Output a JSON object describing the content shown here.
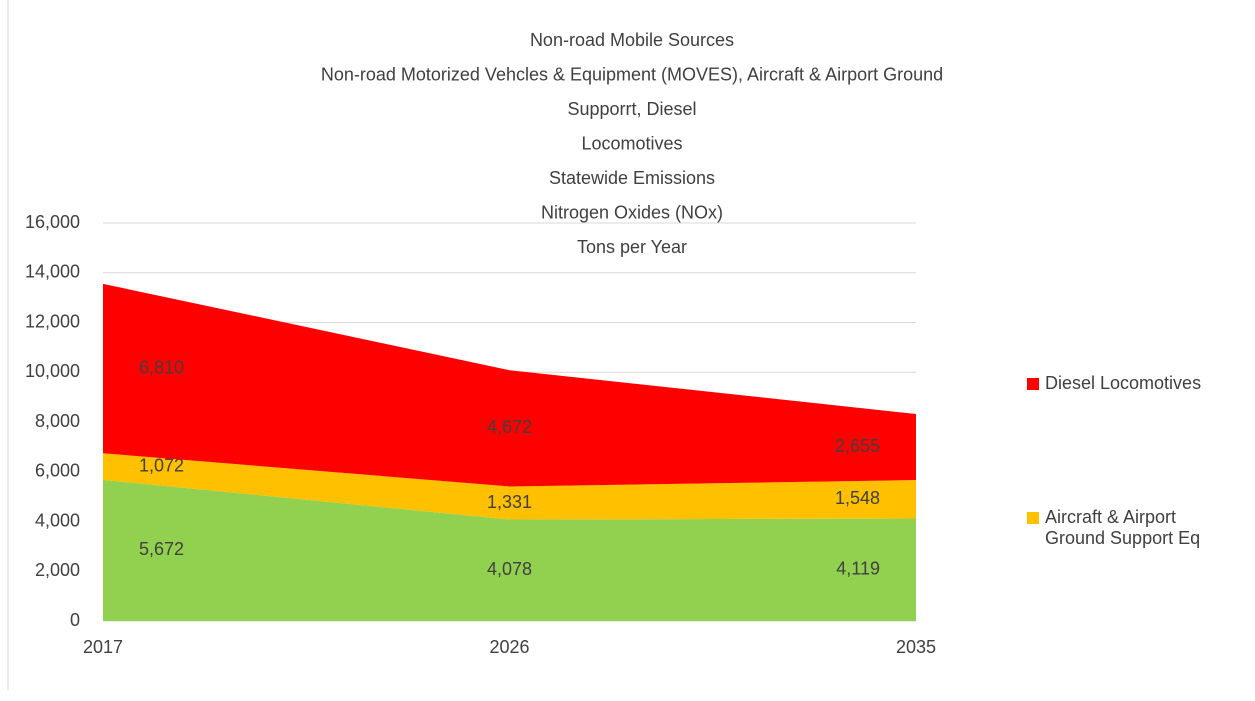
{
  "chart_data": {
    "type": "stacked_area",
    "title": [
      "Non-road Mobile Sources",
      "Non-road Motorized Vehcles & Equipment (MOVES), Aircraft & Airport Ground",
      "Supporrt, Diesel",
      "Locomotives",
      "Statewide Emissions",
      "Nitrogen Oxides (NOx)",
      "Tons per Year"
    ],
    "categories": [
      "2017",
      "2026",
      "2035"
    ],
    "series": [
      {
        "color": "#92d050",
        "values": [
          5672,
          4078,
          4119
        ],
        "value_labels": [
          "5,672",
          "4,078",
          "4,119"
        ]
      },
      {
        "name": "Aircraft & Airport Ground Support Eq",
        "color": "#ffc000",
        "values": [
          1072,
          1331,
          1548
        ],
        "value_labels": [
          "1,072",
          "1,331",
          "1,548"
        ]
      },
      {
        "name": "Diesel Locomotives",
        "color": "#ff0000",
        "values": [
          6810,
          4672,
          2655
        ],
        "value_labels": [
          "6,810",
          "4,672",
          "2,655"
        ]
      }
    ],
    "ylim": [
      0,
      16000
    ],
    "yticks": [
      0,
      {
        "value": 2000,
        "label": "2,000"
      },
      {
        "value": 4000,
        "label": "4,000"
      },
      {
        "value": 6000,
        "label": "6,000"
      },
      {
        "value": 8000,
        "label": "8,000"
      },
      {
        "value": 10000,
        "label": "10,000"
      },
      {
        "value": 12000,
        "label": "12,000"
      },
      {
        "value": 14000,
        "label": "14,000"
      },
      {
        "value": 16000,
        "label": "16,000"
      }
    ],
    "grid": true,
    "legend": "right"
  }
}
